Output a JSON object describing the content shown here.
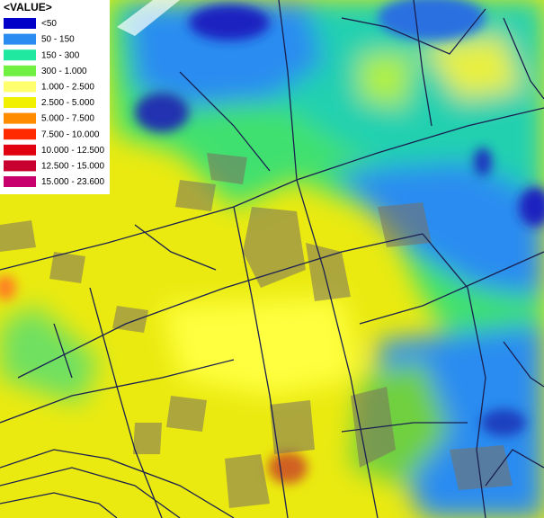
{
  "legend": {
    "title": "<VALUE>",
    "items": [
      {
        "label": "<50",
        "color": "#0000c8"
      },
      {
        "label": "50 - 150",
        "color": "#2a8cf0"
      },
      {
        "label": "150 - 300",
        "color": "#20e8a0"
      },
      {
        "label": "300 - 1.000",
        "color": "#70f040"
      },
      {
        "label": "1.000 - 2.500",
        "color": "#ffff70"
      },
      {
        "label": "2.500 - 5.000",
        "color": "#f0f000"
      },
      {
        "label": "5.000 - 7.500",
        "color": "#ff8c00"
      },
      {
        "label": "7.500 - 10.000",
        "color": "#ff2a00"
      },
      {
        "label": "10.000 - 12.500",
        "color": "#e00010"
      },
      {
        "label": "12.500 - 15.000",
        "color": "#c80030"
      },
      {
        "label": "15.000 - 23.600",
        "color": "#c8006e"
      }
    ]
  }
}
